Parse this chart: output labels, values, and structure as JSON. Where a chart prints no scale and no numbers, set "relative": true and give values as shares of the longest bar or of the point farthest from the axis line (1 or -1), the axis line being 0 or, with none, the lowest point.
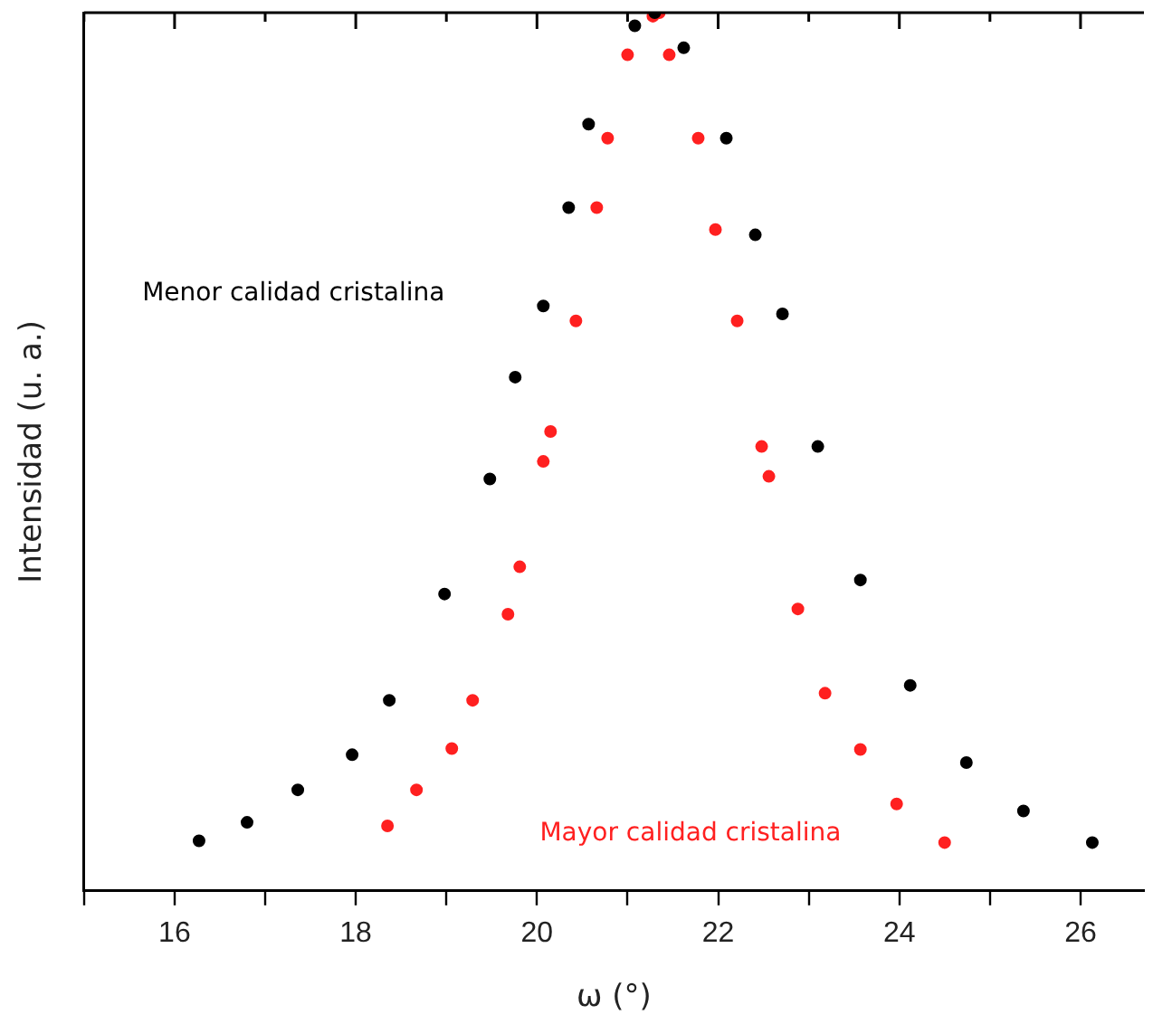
{
  "chart_data": {
    "type": "scatter",
    "xlabel": "ω (°)",
    "ylabel": "Intensidad (u. a.)",
    "relative": true,
    "legend": false,
    "marker": "circle",
    "tick_labels": "x",
    "grid": false,
    "xlim": [
      15,
      26.7
    ],
    "xticks": [
      {
        "value": 15,
        "label": null
      },
      16,
      {
        "value": 17,
        "label": null
      },
      18,
      {
        "value": 19,
        "label": null
      },
      20,
      {
        "value": 21,
        "label": null
      },
      22,
      {
        "value": 23,
        "label": null
      },
      24,
      {
        "value": 25,
        "label": null
      },
      26
    ],
    "series": [
      {
        "name": "Menor calidad cristalina",
        "color": "#000000",
        "x": [
          16.27,
          16.8,
          17.36,
          17.96,
          18.37,
          18.98,
          19.48,
          19.76,
          20.07,
          20.35,
          20.57,
          21.08,
          21.3,
          21.62,
          22.09,
          22.41,
          22.71,
          23.1,
          23.57,
          24.12,
          24.74,
          25.37,
          26.13
        ],
        "values": [
          0.057,
          0.078,
          0.115,
          0.155,
          0.217,
          0.338,
          0.469,
          0.585,
          0.666,
          0.778,
          0.873,
          0.985,
          1,
          0.96,
          0.857,
          0.747,
          0.657,
          0.506,
          0.354,
          0.234,
          0.146,
          0.091,
          0.055
        ]
      },
      {
        "name": "Mayor calidad cristalina",
        "color": "#ff2020",
        "x": [
          18.35,
          18.67,
          19.06,
          19.29,
          19.68,
          19.81,
          20.07,
          20.15,
          20.43,
          20.66,
          20.78,
          21.0,
          21.28,
          21.35,
          21.46,
          21.78,
          21.97,
          22.21,
          22.48,
          22.56,
          22.88,
          23.18,
          23.57,
          23.97,
          24.5
        ],
        "values": [
          0.074,
          0.115,
          0.162,
          0.217,
          0.315,
          0.369,
          0.489,
          0.523,
          0.649,
          0.778,
          0.857,
          0.952,
          0.996,
          1,
          0.952,
          0.857,
          0.753,
          0.649,
          0.506,
          0.472,
          0.321,
          0.225,
          0.161,
          0.099,
          0.055
        ]
      }
    ]
  }
}
